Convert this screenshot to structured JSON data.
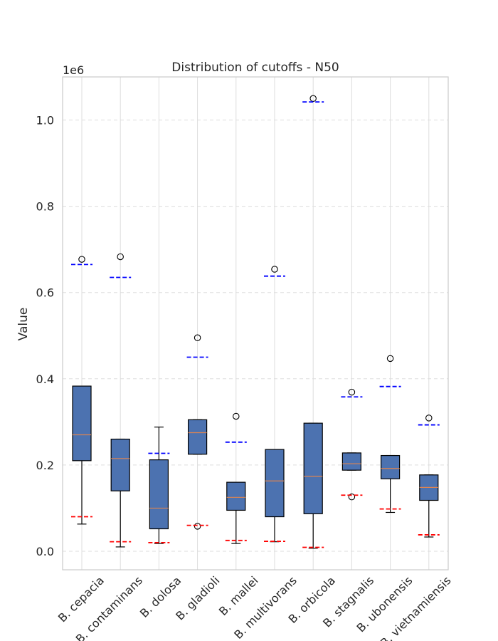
{
  "chart_data": {
    "type": "box",
    "title": "Distribution of cutoffs - N50",
    "xlabel": "",
    "ylabel": "Value",
    "offset_text": "1e6",
    "ylim": [
      -0.043,
      1.1
    ],
    "yticks": [
      0.0,
      0.2,
      0.4,
      0.6,
      0.8,
      1.0
    ],
    "ytick_labels": [
      "0.0",
      "0.2",
      "0.4",
      "0.6",
      "0.8",
      "1.0"
    ],
    "grid": true,
    "colors": {
      "box_fill": "#4c72b0",
      "median": "#dd8452",
      "upper_cutoff": "#0000ff",
      "lower_cutoff": "#ff0000",
      "grid": "#dddddd",
      "spine": "#cccccc"
    },
    "categories": [
      "B. cepacia",
      "B. contaminans",
      "B. dolosa",
      "B. gladioli",
      "B. mallei",
      "B. multivorans",
      "B. orbicola",
      "B. stagnalis",
      "B. ubonensis",
      "B. vietnamiensis"
    ],
    "boxes": [
      {
        "category": "B. cepacia",
        "whisker_low": 0.063,
        "q1": 0.21,
        "median": 0.27,
        "q3": 0.383,
        "whisker_high": 0.383,
        "outliers": [
          0.677
        ],
        "upper_cutoff": 0.665,
        "lower_cutoff": 0.08
      },
      {
        "category": "B. contaminans",
        "whisker_low": 0.01,
        "q1": 0.14,
        "median": 0.215,
        "q3": 0.26,
        "whisker_high": 0.26,
        "outliers": [
          0.683
        ],
        "upper_cutoff": 0.635,
        "lower_cutoff": 0.022
      },
      {
        "category": "B. dolosa",
        "whisker_low": 0.018,
        "q1": 0.052,
        "median": 0.1,
        "q3": 0.212,
        "whisker_high": 0.288,
        "outliers": [],
        "upper_cutoff": 0.227,
        "lower_cutoff": 0.02
      },
      {
        "category": "B. gladioli",
        "whisker_low": 0.225,
        "q1": 0.225,
        "median": 0.275,
        "q3": 0.305,
        "whisker_high": 0.305,
        "outliers": [
          0.495,
          0.058
        ],
        "upper_cutoff": 0.45,
        "lower_cutoff": 0.06
      },
      {
        "category": "B. mallei",
        "whisker_low": 0.018,
        "q1": 0.095,
        "median": 0.125,
        "q3": 0.16,
        "whisker_high": 0.16,
        "outliers": [
          0.313
        ],
        "upper_cutoff": 0.253,
        "lower_cutoff": 0.025
      },
      {
        "category": "B. multivorans",
        "whisker_low": 0.022,
        "q1": 0.08,
        "median": 0.163,
        "q3": 0.236,
        "whisker_high": 0.236,
        "outliers": [
          0.654
        ],
        "upper_cutoff": 0.638,
        "lower_cutoff": 0.023
      },
      {
        "category": "B. orbicola",
        "whisker_low": 0.007,
        "q1": 0.087,
        "median": 0.174,
        "q3": 0.297,
        "whisker_high": 0.297,
        "outliers": [
          1.05
        ],
        "upper_cutoff": 1.042,
        "lower_cutoff": 0.009
      },
      {
        "category": "B. stagnalis",
        "whisker_low": 0.188,
        "q1": 0.188,
        "median": 0.203,
        "q3": 0.228,
        "whisker_high": 0.228,
        "outliers": [
          0.369,
          0.126
        ],
        "upper_cutoff": 0.358,
        "lower_cutoff": 0.13
      },
      {
        "category": "B. ubonensis",
        "whisker_low": 0.09,
        "q1": 0.168,
        "median": 0.192,
        "q3": 0.222,
        "whisker_high": 0.222,
        "outliers": [
          0.447
        ],
        "upper_cutoff": 0.382,
        "lower_cutoff": 0.098
      },
      {
        "category": "B. vietnamiensis",
        "whisker_low": 0.033,
        "q1": 0.118,
        "median": 0.148,
        "q3": 0.177,
        "whisker_high": 0.177,
        "outliers": [
          0.309
        ],
        "upper_cutoff": 0.293,
        "lower_cutoff": 0.038
      }
    ]
  }
}
